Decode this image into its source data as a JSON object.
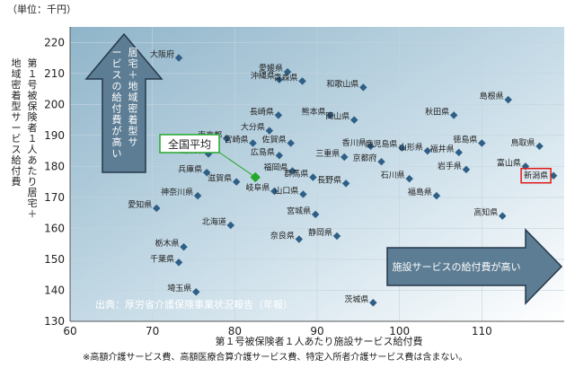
{
  "unit_label": "（単位：千円）",
  "source": "出典：厚労省介護保険事業状況報告（年報）",
  "footnote": "※高額介護サービス費、高額医療合算介護サービス費、特定入所者介護サービス費は含まない。",
  "colors": {
    "plot_bg_dark": "#8fb4c9",
    "plot_bg_light": "#ffffff",
    "marker": "#2f5f86",
    "arrow_fill": "#5d7d94",
    "arrow_stroke": "#24384a",
    "arrow_text": "#ffffff",
    "highlight_marker": "#22a82a",
    "highlight_box": "#22a82a",
    "niigata_box": "#e01a1a",
    "text": "#222222"
  },
  "annotations": {
    "national_average": "全国平均",
    "up_arrow": "居宅＋地域密着型サービスの給付費が高い",
    "right_arrow": "施設サービスの給付費が高い"
  },
  "chart_data": {
    "type": "scatter",
    "xlabel": "第１号被保険者１人あたり施設サービス給付費",
    "ylabel": "第１号被保険者１人あたり居宅＋地域密着型サービス給付費",
    "xlim": [
      60,
      120
    ],
    "ylim": [
      130,
      225
    ],
    "xticks": [
      60,
      70,
      80,
      90,
      100,
      110
    ],
    "yticks": [
      130,
      140,
      150,
      160,
      170,
      180,
      190,
      200,
      210,
      220
    ],
    "highlight": {
      "name": "全国平均",
      "x": 82.5,
      "y": 176.5
    },
    "points": [
      {
        "name": "大阪府",
        "x": 73.2,
        "y": 215.0
      },
      {
        "name": "愛媛県",
        "x": 86.4,
        "y": 210.5
      },
      {
        "name": "沖縄県",
        "x": 85.4,
        "y": 208.0
      },
      {
        "name": "青森県",
        "x": 88.2,
        "y": 207.5
      },
      {
        "name": "和歌山県",
        "x": 95.6,
        "y": 205.5
      },
      {
        "name": "島根県",
        "x": 113.2,
        "y": 201.5
      },
      {
        "name": "長崎県",
        "x": 85.3,
        "y": 196.5
      },
      {
        "name": "熊本県",
        "x": 91.6,
        "y": 196.5
      },
      {
        "name": "岡山県",
        "x": 94.5,
        "y": 195.0
      },
      {
        "name": "秋田県",
        "x": 106.6,
        "y": 196.5
      },
      {
        "name": "大分県",
        "x": 84.2,
        "y": 191.5
      },
      {
        "name": "東京都",
        "x": 79.0,
        "y": 189.0
      },
      {
        "name": "宮崎県",
        "x": 82.2,
        "y": 187.5
      },
      {
        "name": "佐賀県",
        "x": 86.8,
        "y": 187.5
      },
      {
        "name": "香川県",
        "x": 96.5,
        "y": 186.5
      },
      {
        "name": "鹿児島県",
        "x": 100.3,
        "y": 186.0
      },
      {
        "name": "徳島県",
        "x": 110.0,
        "y": 187.5
      },
      {
        "name": "鳥取県",
        "x": 117.0,
        "y": 186.5
      },
      {
        "name": "山梨県",
        "x": 76.8,
        "y": 184.0
      },
      {
        "name": "広島県",
        "x": 85.4,
        "y": 183.5
      },
      {
        "name": "三重県",
        "x": 93.3,
        "y": 183.0
      },
      {
        "name": "京都府",
        "x": 97.8,
        "y": 181.5
      },
      {
        "name": "山形県",
        "x": 103.4,
        "y": 185.0
      },
      {
        "name": "福井県",
        "x": 107.2,
        "y": 184.5
      },
      {
        "name": "富山県",
        "x": 115.3,
        "y": 180.0
      },
      {
        "name": "岩手県",
        "x": 108.1,
        "y": 179.0
      },
      {
        "name": "新潟県",
        "x": 118.7,
        "y": 177.0
      },
      {
        "name": "兵庫県",
        "x": 76.6,
        "y": 178.0
      },
      {
        "name": "滋賀県",
        "x": 80.2,
        "y": 175.0
      },
      {
        "name": "福岡県",
        "x": 87.0,
        "y": 178.5
      },
      {
        "name": "群馬県",
        "x": 89.5,
        "y": 176.5
      },
      {
        "name": "長野県",
        "x": 93.5,
        "y": 174.5
      },
      {
        "name": "石川県",
        "x": 101.2,
        "y": 176.0
      },
      {
        "name": "神奈川県",
        "x": 75.5,
        "y": 170.5
      },
      {
        "name": "岐阜県",
        "x": 84.8,
        "y": 172.0
      },
      {
        "name": "山口県",
        "x": 88.3,
        "y": 171.0
      },
      {
        "name": "福島県",
        "x": 104.5,
        "y": 170.5
      },
      {
        "name": "愛知県",
        "x": 70.5,
        "y": 166.5
      },
      {
        "name": "宮城県",
        "x": 89.8,
        "y": 164.5
      },
      {
        "name": "高知県",
        "x": 112.5,
        "y": 164.0
      },
      {
        "name": "北海道",
        "x": 79.5,
        "y": 161.0
      },
      {
        "name": "奈良県",
        "x": 87.8,
        "y": 156.5
      },
      {
        "name": "静岡県",
        "x": 92.4,
        "y": 157.5
      },
      {
        "name": "栃木県",
        "x": 73.8,
        "y": 154.0
      },
      {
        "name": "千葉県",
        "x": 73.2,
        "y": 149.0
      },
      {
        "name": "埼玉県",
        "x": 75.3,
        "y": 139.5
      },
      {
        "name": "茨城県",
        "x": 96.8,
        "y": 136.0
      }
    ]
  }
}
